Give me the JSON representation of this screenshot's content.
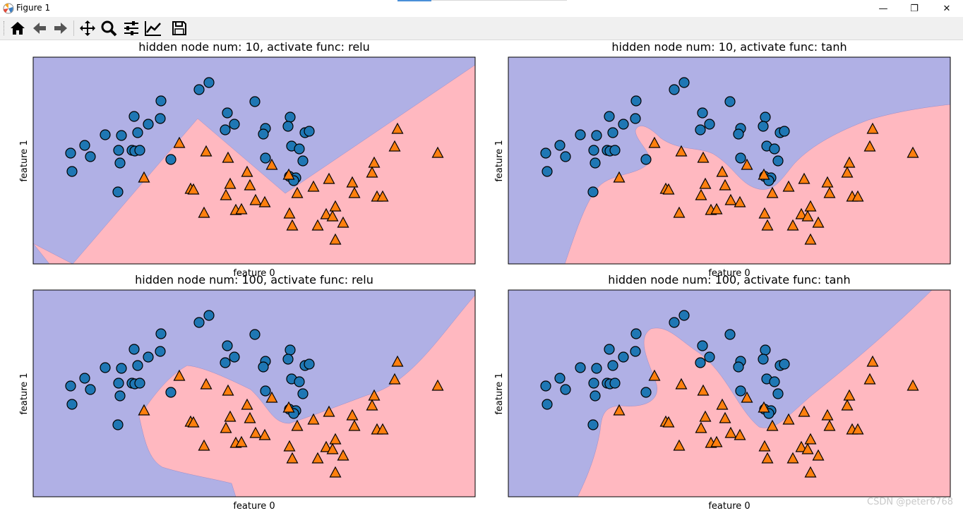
{
  "window": {
    "title": "Figure 1",
    "minimize": "—",
    "maximize": "❐",
    "close": "✕"
  },
  "toolbar": {
    "icons": [
      "home-icon",
      "back-arrow-icon",
      "forward-arrow-icon",
      "pan-icon",
      "zoom-icon",
      "subplots-config-icon",
      "edit-axes-icon",
      "save-icon"
    ]
  },
  "watermark": "CSDN @peter6768",
  "colors": {
    "class0_region": "#b0b0e5",
    "class1_region": "#ffb8c0",
    "class0_marker": "#1f77b4",
    "class1_marker": "#ff7f0e"
  },
  "chart_data": [
    {
      "type": "scatter",
      "title": "hidden node num: 10, activate func: relu",
      "xlabel": "feature 0",
      "ylabel": "feature 1",
      "grid": false,
      "xticks": [],
      "yticks": []
    },
    {
      "type": "scatter",
      "title": "hidden node num: 10, activate func: tanh",
      "xlabel": "feature 0",
      "ylabel": "feature 1",
      "grid": false,
      "xticks": [],
      "yticks": []
    },
    {
      "type": "scatter",
      "title": "hidden node num: 100, activate func: relu",
      "xlabel": "feature 0",
      "ylabel": "feature 1",
      "grid": false,
      "xticks": [],
      "yticks": []
    },
    {
      "type": "scatter",
      "title": "hidden node num: 100, activate func: tanh",
      "xlabel": "feature 0",
      "ylabel": "feature 1",
      "grid": false,
      "xticks": [],
      "yticks": []
    }
  ]
}
